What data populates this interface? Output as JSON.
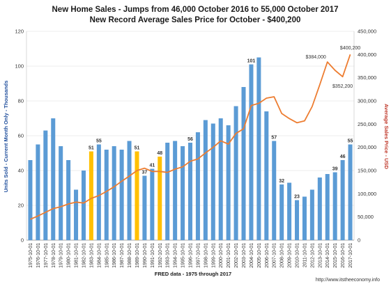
{
  "chart_data": {
    "type": "bar",
    "title": "New Home Sales - Jumps from 46,000 October 2016 to 55,000 October 2017",
    "subtitle": "New Record Average Sales Price for October  - $400,200",
    "xlabel": "FRED data - 1975 through 2017",
    "ylabel": "Units Sold - Current Month Only - Thousands",
    "y2label": "Average Sales Price - USD",
    "source": "http://www.itstheeconomy.info",
    "ylim": [
      0,
      120
    ],
    "y2lim": [
      0,
      450000
    ],
    "yticks": [
      "0",
      "20",
      "40",
      "60",
      "80",
      "100",
      "120"
    ],
    "y2ticks": [
      "0",
      "50,000",
      "100,000",
      "150,000",
      "200,000",
      "250,000",
      "300,000",
      "350,000",
      "400,000",
      "450,000"
    ],
    "grid": true,
    "colors": {
      "bar": "#5b9bd5",
      "highlight": "#ffc000",
      "line": "#ed7d31"
    },
    "categories": [
      "1975-10-01",
      "1976-10-01",
      "1977-10-01",
      "1978-10-01",
      "1979-10-01",
      "1980-10-01",
      "1981-10-01",
      "1982-10-01",
      "1983-10-01",
      "1984-10-01",
      "1985-10-01",
      "1986-10-01",
      "1987-10-01",
      "1988-10-01",
      "1989-10-01",
      "1990-10-01",
      "1991-10-01",
      "1992-10-01",
      "1993-10-01",
      "1994-10-01",
      "1995-10-01",
      "1996-10-01",
      "1997-10-01",
      "1998-10-01",
      "1999-10-01",
      "2000-10-01",
      "2001-10-01",
      "2002-10-01",
      "2003-10-01",
      "2004-10-01",
      "2005-10-01",
      "2006-10-01",
      "2007-10-01",
      "2008-10-01",
      "2009-10-01",
      "2010-10-01",
      "2011-10-01",
      "2012-10-01",
      "2013-10-01",
      "2014-10-01",
      "2015-10-01",
      "2016-10-01",
      "2017-10-01"
    ],
    "series": [
      {
        "type": "bar",
        "values": [
          46,
          55,
          63,
          70,
          54,
          46,
          29,
          40,
          51,
          55,
          52,
          54,
          52,
          57,
          51,
          37,
          41,
          48,
          56,
          57,
          54,
          56,
          62,
          69,
          67,
          70,
          66,
          77,
          88,
          101,
          105,
          74,
          57,
          32,
          33,
          23,
          25,
          29,
          36,
          38,
          39,
          46,
          55
        ],
        "highlight_indices": [
          8,
          14,
          17
        ],
        "labeled_indices": [
          8,
          9,
          14,
          15,
          16,
          17,
          21,
          29,
          32,
          33,
          35,
          40,
          41,
          42
        ]
      },
      {
        "type": "line",
        "values": [
          45000,
          52000,
          60000,
          68000,
          72000,
          78000,
          82000,
          80000,
          90000,
          96000,
          105000,
          115000,
          127000,
          138000,
          150000,
          155000,
          148000,
          148000,
          146000,
          153000,
          158000,
          170000,
          175000,
          188000,
          200000,
          214000,
          207000,
          230000,
          240000,
          290000,
          295000,
          306000,
          309000,
          273000,
          262000,
          253000,
          257000,
          288000,
          335000,
          384000,
          366000,
          352200,
          400200
        ],
        "point_labels": [
          {
            "index": 39,
            "text": "$384,000"
          },
          {
            "index": 41,
            "text": "$352,200"
          },
          {
            "index": 42,
            "text": "$400,200"
          }
        ]
      }
    ]
  }
}
